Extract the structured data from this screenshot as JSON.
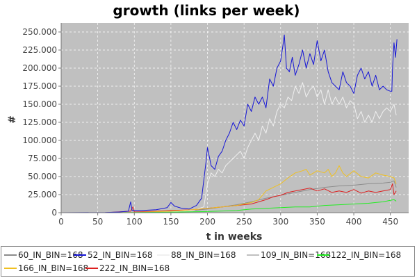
{
  "chart_data": {
    "type": "line",
    "title": "growth (links per week)",
    "xlabel": "t in weeks",
    "ylabel": "#",
    "xlim": [
      0,
      475
    ],
    "ylim": [
      0,
      262500
    ],
    "x_ticks": [
      0,
      50,
      100,
      150,
      200,
      250,
      300,
      350,
      400,
      450
    ],
    "x_tick_labels": [
      "0",
      "50",
      "100",
      "150",
      "200",
      "250",
      "300",
      "350",
      "400",
      "450"
    ],
    "y_ticks": [
      0,
      25000,
      50000,
      75000,
      100000,
      125000,
      150000,
      175000,
      200000,
      225000,
      250000
    ],
    "y_tick_labels": [
      "0",
      "25.000",
      "50.000",
      "75.000",
      "100.000",
      "125.000",
      "150.000",
      "175.000",
      "200.000",
      "225.000",
      "250.000"
    ],
    "grid": true,
    "plot_background": "#c0c0c0",
    "legend_position": "bottom",
    "series": [
      {
        "name": "60_IN_BIN=168",
        "color": "#8c8c8c",
        "points": [
          [
            0,
            0
          ],
          [
            60,
            0
          ],
          [
            100,
            400
          ],
          [
            150,
            1500
          ],
          [
            180,
            3000
          ],
          [
            200,
            5000
          ],
          [
            220,
            8000
          ],
          [
            240,
            11000
          ],
          [
            260,
            15000
          ],
          [
            280,
            20000
          ],
          [
            300,
            24000
          ],
          [
            320,
            28000
          ],
          [
            340,
            32000
          ],
          [
            360,
            35000
          ],
          [
            380,
            37000
          ],
          [
            400,
            38000
          ],
          [
            420,
            40000
          ],
          [
            440,
            41000
          ],
          [
            450,
            42000
          ],
          [
            455,
            44000
          ],
          [
            458,
            35000
          ]
        ]
      },
      {
        "name": "52_IN_BIN=168",
        "color": "#1515d6",
        "points": [
          [
            0,
            0
          ],
          [
            60,
            300
          ],
          [
            80,
            1000
          ],
          [
            92,
            2000
          ],
          [
            95,
            15000
          ],
          [
            97,
            3000
          ],
          [
            110,
            3000
          ],
          [
            130,
            4000
          ],
          [
            145,
            7000
          ],
          [
            150,
            14000
          ],
          [
            155,
            9000
          ],
          [
            165,
            6000
          ],
          [
            175,
            5000
          ],
          [
            185,
            10000
          ],
          [
            192,
            20000
          ],
          [
            198,
            70000
          ],
          [
            200,
            90000
          ],
          [
            205,
            65000
          ],
          [
            210,
            60000
          ],
          [
            215,
            78000
          ],
          [
            220,
            85000
          ],
          [
            225,
            100000
          ],
          [
            230,
            110000
          ],
          [
            235,
            125000
          ],
          [
            240,
            115000
          ],
          [
            245,
            128000
          ],
          [
            250,
            120000
          ],
          [
            255,
            150000
          ],
          [
            260,
            140000
          ],
          [
            265,
            160000
          ],
          [
            270,
            150000
          ],
          [
            275,
            160000
          ],
          [
            280,
            145000
          ],
          [
            285,
            185000
          ],
          [
            290,
            175000
          ],
          [
            295,
            200000
          ],
          [
            300,
            210000
          ],
          [
            303,
            230000
          ],
          [
            305,
            246000
          ],
          [
            308,
            200000
          ],
          [
            312,
            195000
          ],
          [
            316,
            215000
          ],
          [
            320,
            190000
          ],
          [
            325,
            205000
          ],
          [
            330,
            225000
          ],
          [
            335,
            200000
          ],
          [
            340,
            220000
          ],
          [
            345,
            205000
          ],
          [
            350,
            238000
          ],
          [
            355,
            210000
          ],
          [
            360,
            225000
          ],
          [
            365,
            195000
          ],
          [
            370,
            180000
          ],
          [
            375,
            175000
          ],
          [
            380,
            170000
          ],
          [
            385,
            195000
          ],
          [
            390,
            180000
          ],
          [
            395,
            175000
          ],
          [
            400,
            165000
          ],
          [
            405,
            190000
          ],
          [
            410,
            200000
          ],
          [
            415,
            185000
          ],
          [
            420,
            195000
          ],
          [
            425,
            175000
          ],
          [
            430,
            190000
          ],
          [
            435,
            170000
          ],
          [
            440,
            175000
          ],
          [
            445,
            170000
          ],
          [
            450,
            168000
          ],
          [
            452,
            168000
          ],
          [
            453,
            200000
          ],
          [
            455,
            235000
          ],
          [
            457,
            215000
          ],
          [
            459,
            240000
          ]
        ]
      },
      {
        "name": "88_IN_BIN=168",
        "color": "#f0f0f0",
        "points": [
          [
            0,
            0
          ],
          [
            60,
            0
          ],
          [
            100,
            300
          ],
          [
            150,
            1500
          ],
          [
            180,
            3000
          ],
          [
            195,
            8000
          ],
          [
            200,
            40000
          ],
          [
            205,
            55000
          ],
          [
            210,
            50000
          ],
          [
            215,
            60000
          ],
          [
            220,
            55000
          ],
          [
            225,
            65000
          ],
          [
            230,
            70000
          ],
          [
            235,
            75000
          ],
          [
            240,
            80000
          ],
          [
            245,
            85000
          ],
          [
            250,
            75000
          ],
          [
            255,
            90000
          ],
          [
            260,
            100000
          ],
          [
            265,
            110000
          ],
          [
            270,
            100000
          ],
          [
            275,
            120000
          ],
          [
            280,
            110000
          ],
          [
            285,
            130000
          ],
          [
            290,
            120000
          ],
          [
            295,
            140000
          ],
          [
            300,
            150000
          ],
          [
            305,
            145000
          ],
          [
            310,
            160000
          ],
          [
            315,
            155000
          ],
          [
            320,
            175000
          ],
          [
            325,
            165000
          ],
          [
            330,
            180000
          ],
          [
            335,
            160000
          ],
          [
            340,
            170000
          ],
          [
            345,
            175000
          ],
          [
            350,
            160000
          ],
          [
            355,
            170000
          ],
          [
            360,
            150000
          ],
          [
            365,
            170000
          ],
          [
            370,
            150000
          ],
          [
            375,
            160000
          ],
          [
            380,
            150000
          ],
          [
            385,
            160000
          ],
          [
            390,
            145000
          ],
          [
            395,
            155000
          ],
          [
            400,
            150000
          ],
          [
            405,
            130000
          ],
          [
            410,
            140000
          ],
          [
            415,
            125000
          ],
          [
            420,
            135000
          ],
          [
            425,
            125000
          ],
          [
            430,
            140000
          ],
          [
            435,
            130000
          ],
          [
            440,
            140000
          ],
          [
            445,
            145000
          ],
          [
            450,
            140000
          ],
          [
            455,
            150000
          ],
          [
            458,
            135000
          ]
        ]
      },
      {
        "name": "109_IN_BIN=168",
        "color": "#c0c0c0",
        "points": [
          [
            0,
            0
          ],
          [
            460,
            0
          ]
        ]
      },
      {
        "name": "122_IN_BIN=168",
        "color": "#22ee22",
        "points": [
          [
            0,
            0
          ],
          [
            60,
            0
          ],
          [
            100,
            300
          ],
          [
            150,
            800
          ],
          [
            200,
            1500
          ],
          [
            240,
            3000
          ],
          [
            260,
            5000
          ],
          [
            280,
            6000
          ],
          [
            300,
            7000
          ],
          [
            320,
            8000
          ],
          [
            340,
            8000
          ],
          [
            360,
            10000
          ],
          [
            380,
            11000
          ],
          [
            400,
            12000
          ],
          [
            420,
            13000
          ],
          [
            430,
            14000
          ],
          [
            440,
            15000
          ],
          [
            450,
            17000
          ],
          [
            455,
            18000
          ],
          [
            458,
            16000
          ]
        ]
      },
      {
        "name": "166_IN_BIN=168",
        "color": "#f0c020",
        "points": [
          [
            0,
            0
          ],
          [
            60,
            0
          ],
          [
            100,
            400
          ],
          [
            150,
            2000
          ],
          [
            180,
            4000
          ],
          [
            200,
            6000
          ],
          [
            220,
            8000
          ],
          [
            240,
            10000
          ],
          [
            260,
            14000
          ],
          [
            270,
            18000
          ],
          [
            280,
            30000
          ],
          [
            290,
            35000
          ],
          [
            300,
            40000
          ],
          [
            310,
            48000
          ],
          [
            320,
            55000
          ],
          [
            330,
            58000
          ],
          [
            335,
            60000
          ],
          [
            340,
            52000
          ],
          [
            350,
            58000
          ],
          [
            360,
            55000
          ],
          [
            365,
            60000
          ],
          [
            370,
            50000
          ],
          [
            375,
            55000
          ],
          [
            380,
            65000
          ],
          [
            385,
            55000
          ],
          [
            390,
            50000
          ],
          [
            400,
            58000
          ],
          [
            410,
            50000
          ],
          [
            420,
            48000
          ],
          [
            430,
            55000
          ],
          [
            440,
            52000
          ],
          [
            450,
            50000
          ],
          [
            455,
            48000
          ],
          [
            458,
            40000
          ]
        ]
      },
      {
        "name": "222_IN_BIN=168",
        "color": "#dd2020",
        "points": [
          [
            0,
            0
          ],
          [
            60,
            0
          ],
          [
            95,
            2000
          ],
          [
            98,
            8000
          ],
          [
            100,
            1000
          ],
          [
            130,
            2000
          ],
          [
            150,
            3000
          ],
          [
            180,
            4000
          ],
          [
            200,
            6000
          ],
          [
            220,
            8000
          ],
          [
            240,
            10000
          ],
          [
            260,
            12000
          ],
          [
            270,
            15000
          ],
          [
            280,
            18000
          ],
          [
            290,
            22000
          ],
          [
            300,
            24000
          ],
          [
            310,
            28000
          ],
          [
            320,
            30000
          ],
          [
            330,
            32000
          ],
          [
            340,
            34000
          ],
          [
            350,
            30000
          ],
          [
            360,
            33000
          ],
          [
            370,
            28000
          ],
          [
            380,
            30000
          ],
          [
            390,
            28000
          ],
          [
            400,
            32000
          ],
          [
            410,
            27000
          ],
          [
            420,
            30000
          ],
          [
            430,
            28000
          ],
          [
            440,
            30000
          ],
          [
            450,
            32000
          ],
          [
            453,
            40000
          ],
          [
            455,
            25000
          ],
          [
            458,
            30000
          ]
        ]
      }
    ]
  }
}
